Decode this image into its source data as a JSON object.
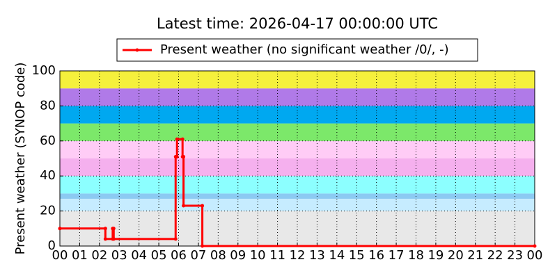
{
  "chart_data": {
    "type": "line",
    "title": "Latest time: 2026-04-17 00:00:00 UTC",
    "y_label": "Present weather (SYNOP code)",
    "x": [
      0,
      2.3,
      2.3,
      2.67,
      2.67,
      2.72,
      2.72,
      5.85,
      5.85,
      5.92,
      5.92,
      6.2,
      6.2,
      6.25,
      6.25,
      7.2,
      7.2,
      24
    ],
    "series": [
      {
        "name": "Present weather (no significant weather /0/, -)",
        "color": "#ff0000",
        "values": [
          10,
          10,
          4,
          4,
          10,
          10,
          4,
          4,
          51,
          51,
          61,
          61,
          51,
          51,
          23,
          23,
          0,
          0
        ]
      }
    ],
    "bands": [
      {
        "from": 0,
        "to": 20,
        "color": "#e8e8e8"
      },
      {
        "from": 20,
        "to": 27,
        "color": "#c6ecff"
      },
      {
        "from": 27,
        "to": 30,
        "color": "#8ccaf2"
      },
      {
        "from": 30,
        "to": 40,
        "color": "#8cffff"
      },
      {
        "from": 40,
        "to": 50,
        "color": "#f5b0ee"
      },
      {
        "from": 50,
        "to": 60,
        "color": "#ffccf6"
      },
      {
        "from": 60,
        "to": 70,
        "color": "#7ce86a"
      },
      {
        "from": 70,
        "to": 80,
        "color": "#00a8f0"
      },
      {
        "from": 80,
        "to": 90,
        "color": "#b07ae8"
      },
      {
        "from": 90,
        "to": 100,
        "color": "#f5f03c"
      }
    ],
    "xlim": [
      0,
      24
    ],
    "xticks": [
      {
        "value": 0,
        "label": "00"
      },
      {
        "value": 1,
        "label": "01"
      },
      {
        "value": 2,
        "label": "02"
      },
      {
        "value": 3,
        "label": "03"
      },
      {
        "value": 4,
        "label": "04"
      },
      {
        "value": 5,
        "label": "05"
      },
      {
        "value": 6,
        "label": "06"
      },
      {
        "value": 7,
        "label": "07"
      },
      {
        "value": 8,
        "label": "08"
      },
      {
        "value": 9,
        "label": "09"
      },
      {
        "value": 10,
        "label": "10"
      },
      {
        "value": 11,
        "label": "11"
      },
      {
        "value": 12,
        "label": "12"
      },
      {
        "value": 13,
        "label": "13"
      },
      {
        "value": 14,
        "label": "14"
      },
      {
        "value": 15,
        "label": "15"
      },
      {
        "value": 16,
        "label": "16"
      },
      {
        "value": 17,
        "label": "17"
      },
      {
        "value": 18,
        "label": "18"
      },
      {
        "value": 19,
        "label": "19"
      },
      {
        "value": 20,
        "label": "20"
      },
      {
        "value": 21,
        "label": "21"
      },
      {
        "value": 22,
        "label": "22"
      },
      {
        "value": 23,
        "label": "23"
      },
      {
        "value": 24,
        "label": "00"
      }
    ],
    "ylim": [
      0,
      100
    ],
    "yticks": [
      0,
      20,
      40,
      60,
      80,
      100
    ],
    "grid": true
  }
}
